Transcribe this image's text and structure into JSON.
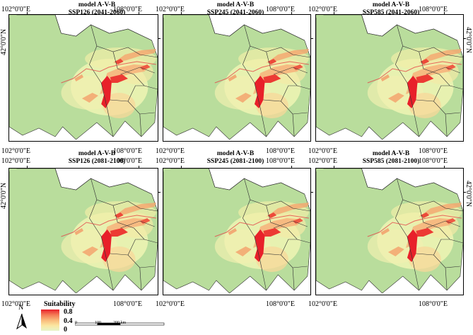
{
  "map": {
    "lon_labels": [
      "102°0'0\"E",
      "108°0'0\"E"
    ],
    "lat_label": "42°0'0\"N",
    "panels": [
      {
        "line1": "model A-V-B",
        "line2": "SSP126 (2041-2060)"
      },
      {
        "line1": "model A-V-B",
        "line2": "SSP245 (2041-2060)"
      },
      {
        "line1": "model A-V-B",
        "line2": "SSP585 (2041-2060)"
      },
      {
        "line1": "model A-V-B",
        "line2": "SSP126 (2081-2100)"
      },
      {
        "line1": "model A-V-B",
        "line2": "SSP245 (2081-2100)"
      },
      {
        "line1": "model A-V-B",
        "line2": "SSP585 (2081-2100)"
      }
    ]
  },
  "legend": {
    "title": "Suitability",
    "values": [
      "0.8",
      "0.4",
      "0"
    ],
    "colors": {
      "high": "#e8202a",
      "mid": "#f9b97a",
      "low": "#e7f4c8",
      "base": "#b9dd9c"
    }
  },
  "north": {
    "label": "N"
  },
  "scale": {
    "labels": [
      "0",
      "100",
      "200 km"
    ]
  }
}
